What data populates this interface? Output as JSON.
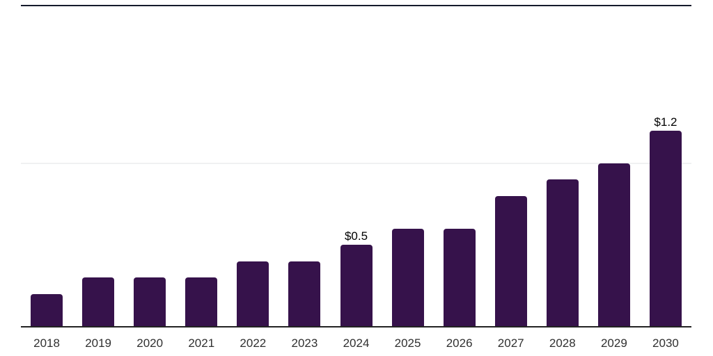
{
  "chart_data": {
    "type": "bar",
    "title": "",
    "xlabel": "",
    "ylabel": "",
    "categories": [
      "2018",
      "2019",
      "2020",
      "2021",
      "2022",
      "2023",
      "2024",
      "2025",
      "2026",
      "2027",
      "2028",
      "2029",
      "2030"
    ],
    "values": [
      0.2,
      0.3,
      0.3,
      0.3,
      0.4,
      0.4,
      0.5,
      0.6,
      0.6,
      0.8,
      0.9,
      1.0,
      1.2
    ],
    "point_labels": [
      "",
      "",
      "",
      "",
      "",
      "",
      "$0.5",
      "",
      "",
      "",
      "",
      "",
      "$1.2"
    ],
    "ylim": [
      0,
      2.0
    ],
    "y_gridlines_at": [
      1.0,
      2.0
    ],
    "y_tick_labels_visible": false,
    "legend": "none",
    "grid": "horizontal-light"
  },
  "style": {
    "background": "#ffffff",
    "bar_color": "#36124b",
    "grid_color": "#f0f1f2",
    "axis_color": "#222222",
    "top_border_color": "#141a2b",
    "tick_label_color": "#303030",
    "data_label_color": "#000000"
  }
}
